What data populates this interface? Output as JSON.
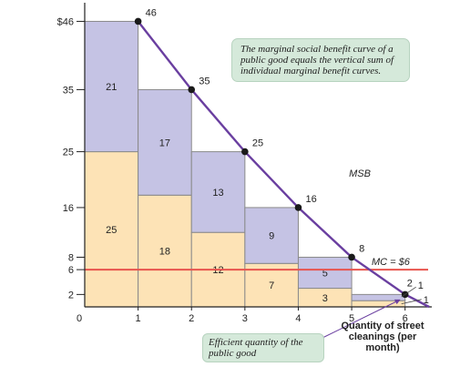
{
  "chart_data": {
    "type": "bar",
    "stacked": true,
    "categories": [
      "1",
      "2",
      "3",
      "4",
      "5",
      "6"
    ],
    "series": [
      {
        "values": [
          25,
          18,
          12,
          7,
          3,
          1
        ],
        "color": "#fde3b6"
      },
      {
        "values": [
          21,
          17,
          13,
          9,
          5,
          1
        ],
        "color": "#c5c3e4"
      }
    ],
    "totals": [
      46,
      35,
      25,
      16,
      8,
      2
    ],
    "y_ticks": [
      {
        "value": 2,
        "label": "2"
      },
      {
        "value": 6,
        "label": "6"
      },
      {
        "value": 8,
        "label": "8"
      },
      {
        "value": 16,
        "label": "16"
      },
      {
        "value": 25,
        "label": "25"
      },
      {
        "value": 35,
        "label": "35"
      },
      {
        "value": 46,
        "label": "$46"
      }
    ],
    "x_ticks": [
      "0",
      "1",
      "2",
      "3",
      "4",
      "5",
      "6"
    ],
    "msb": {
      "label": "MSB",
      "points": [
        [
          1,
          46
        ],
        [
          2,
          35
        ],
        [
          3,
          25
        ],
        [
          4,
          16
        ],
        [
          5,
          8
        ],
        [
          6,
          2
        ]
      ],
      "end_x": 6.45,
      "end_y": 0,
      "color": "#6a3fa0"
    },
    "mc": {
      "label": "MC = $6",
      "value": 6,
      "color": "#e8544e"
    },
    "xlabel": "Quantity of street cleanings (per month)",
    "xlim": [
      0,
      6.5
    ],
    "ylim": [
      0,
      49
    ]
  },
  "annotations": {
    "msb_note": "The marginal social benefit curve of a public good equals the vertical sum of individual marginal benefit curves.",
    "efficient_note": "Efficient quantity of the public good"
  }
}
